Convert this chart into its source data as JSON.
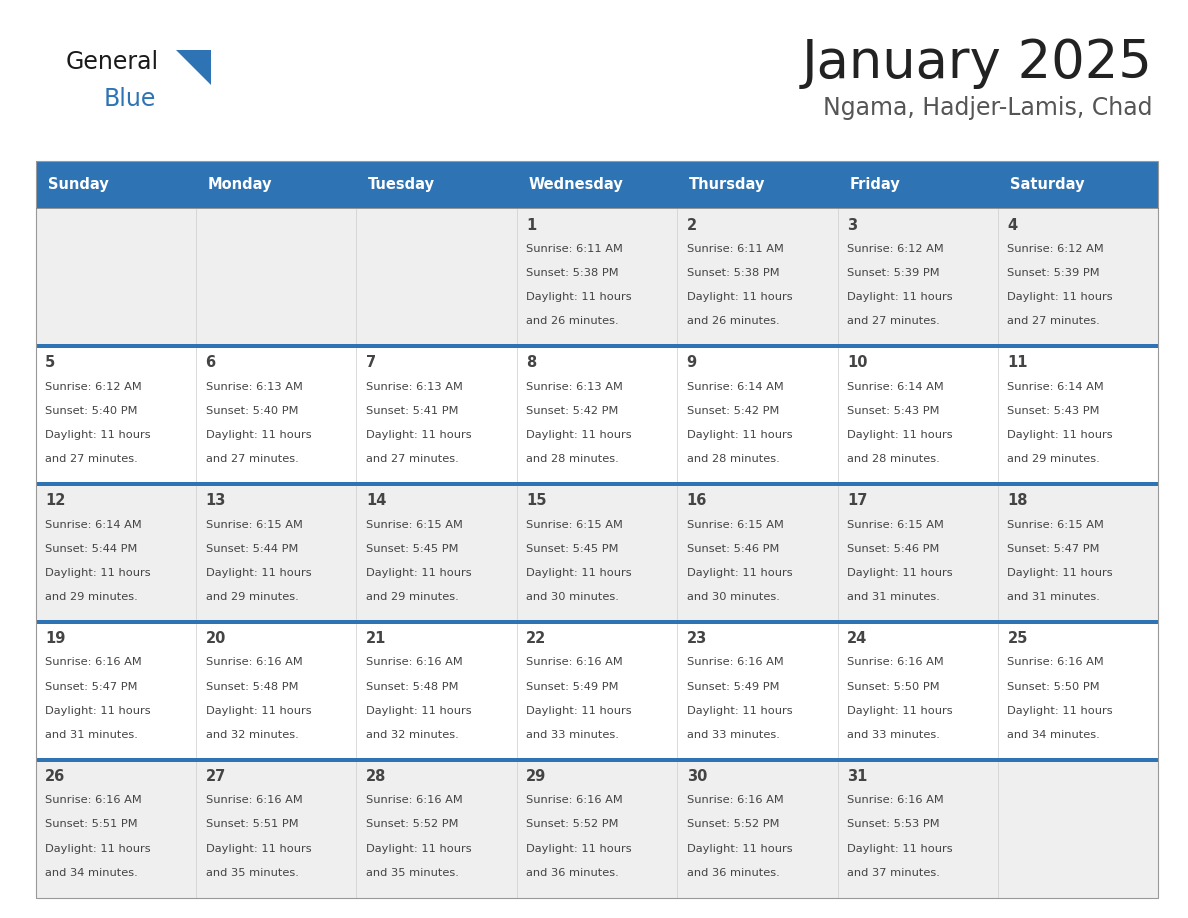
{
  "title": "January 2025",
  "subtitle": "Ngama, Hadjer-Lamis, Chad",
  "days_of_week": [
    "Sunday",
    "Monday",
    "Tuesday",
    "Wednesday",
    "Thursday",
    "Friday",
    "Saturday"
  ],
  "header_bg": "#2E74B5",
  "header_text": "#FFFFFF",
  "row_bg_odd": "#EFEFEF",
  "row_bg_even": "#FFFFFF",
  "row_separator": "#2E74B5",
  "cell_border": "#CCCCCC",
  "day_num_color": "#444444",
  "cell_text_color": "#444444",
  "title_color": "#222222",
  "subtitle_color": "#555555",
  "logo_general_color": "#1a1a1a",
  "logo_blue_color": "#2E74B5",
  "calendar_data": [
    [
      {
        "day": "",
        "sunrise": "",
        "sunset": "",
        "daylight": ""
      },
      {
        "day": "",
        "sunrise": "",
        "sunset": "",
        "daylight": ""
      },
      {
        "day": "",
        "sunrise": "",
        "sunset": "",
        "daylight": ""
      },
      {
        "day": "1",
        "sunrise": "6:11 AM",
        "sunset": "5:38 PM",
        "daylight": "11 hours and 26 minutes."
      },
      {
        "day": "2",
        "sunrise": "6:11 AM",
        "sunset": "5:38 PM",
        "daylight": "11 hours and 26 minutes."
      },
      {
        "day": "3",
        "sunrise": "6:12 AM",
        "sunset": "5:39 PM",
        "daylight": "11 hours and 27 minutes."
      },
      {
        "day": "4",
        "sunrise": "6:12 AM",
        "sunset": "5:39 PM",
        "daylight": "11 hours and 27 minutes."
      }
    ],
    [
      {
        "day": "5",
        "sunrise": "6:12 AM",
        "sunset": "5:40 PM",
        "daylight": "11 hours and 27 minutes."
      },
      {
        "day": "6",
        "sunrise": "6:13 AM",
        "sunset": "5:40 PM",
        "daylight": "11 hours and 27 minutes."
      },
      {
        "day": "7",
        "sunrise": "6:13 AM",
        "sunset": "5:41 PM",
        "daylight": "11 hours and 27 minutes."
      },
      {
        "day": "8",
        "sunrise": "6:13 AM",
        "sunset": "5:42 PM",
        "daylight": "11 hours and 28 minutes."
      },
      {
        "day": "9",
        "sunrise": "6:14 AM",
        "sunset": "5:42 PM",
        "daylight": "11 hours and 28 minutes."
      },
      {
        "day": "10",
        "sunrise": "6:14 AM",
        "sunset": "5:43 PM",
        "daylight": "11 hours and 28 minutes."
      },
      {
        "day": "11",
        "sunrise": "6:14 AM",
        "sunset": "5:43 PM",
        "daylight": "11 hours and 29 minutes."
      }
    ],
    [
      {
        "day": "12",
        "sunrise": "6:14 AM",
        "sunset": "5:44 PM",
        "daylight": "11 hours and 29 minutes."
      },
      {
        "day": "13",
        "sunrise": "6:15 AM",
        "sunset": "5:44 PM",
        "daylight": "11 hours and 29 minutes."
      },
      {
        "day": "14",
        "sunrise": "6:15 AM",
        "sunset": "5:45 PM",
        "daylight": "11 hours and 29 minutes."
      },
      {
        "day": "15",
        "sunrise": "6:15 AM",
        "sunset": "5:45 PM",
        "daylight": "11 hours and 30 minutes."
      },
      {
        "day": "16",
        "sunrise": "6:15 AM",
        "sunset": "5:46 PM",
        "daylight": "11 hours and 30 minutes."
      },
      {
        "day": "17",
        "sunrise": "6:15 AM",
        "sunset": "5:46 PM",
        "daylight": "11 hours and 31 minutes."
      },
      {
        "day": "18",
        "sunrise": "6:15 AM",
        "sunset": "5:47 PM",
        "daylight": "11 hours and 31 minutes."
      }
    ],
    [
      {
        "day": "19",
        "sunrise": "6:16 AM",
        "sunset": "5:47 PM",
        "daylight": "11 hours and 31 minutes."
      },
      {
        "day": "20",
        "sunrise": "6:16 AM",
        "sunset": "5:48 PM",
        "daylight": "11 hours and 32 minutes."
      },
      {
        "day": "21",
        "sunrise": "6:16 AM",
        "sunset": "5:48 PM",
        "daylight": "11 hours and 32 minutes."
      },
      {
        "day": "22",
        "sunrise": "6:16 AM",
        "sunset": "5:49 PM",
        "daylight": "11 hours and 33 minutes."
      },
      {
        "day": "23",
        "sunrise": "6:16 AM",
        "sunset": "5:49 PM",
        "daylight": "11 hours and 33 minutes."
      },
      {
        "day": "24",
        "sunrise": "6:16 AM",
        "sunset": "5:50 PM",
        "daylight": "11 hours and 33 minutes."
      },
      {
        "day": "25",
        "sunrise": "6:16 AM",
        "sunset": "5:50 PM",
        "daylight": "11 hours and 34 minutes."
      }
    ],
    [
      {
        "day": "26",
        "sunrise": "6:16 AM",
        "sunset": "5:51 PM",
        "daylight": "11 hours and 34 minutes."
      },
      {
        "day": "27",
        "sunrise": "6:16 AM",
        "sunset": "5:51 PM",
        "daylight": "11 hours and 35 minutes."
      },
      {
        "day": "28",
        "sunrise": "6:16 AM",
        "sunset": "5:52 PM",
        "daylight": "11 hours and 35 minutes."
      },
      {
        "day": "29",
        "sunrise": "6:16 AM",
        "sunset": "5:52 PM",
        "daylight": "11 hours and 36 minutes."
      },
      {
        "day": "30",
        "sunrise": "6:16 AM",
        "sunset": "5:52 PM",
        "daylight": "11 hours and 36 minutes."
      },
      {
        "day": "31",
        "sunrise": "6:16 AM",
        "sunset": "5:53 PM",
        "daylight": "11 hours and 37 minutes."
      },
      {
        "day": "",
        "sunrise": "",
        "sunset": "",
        "daylight": ""
      }
    ]
  ]
}
